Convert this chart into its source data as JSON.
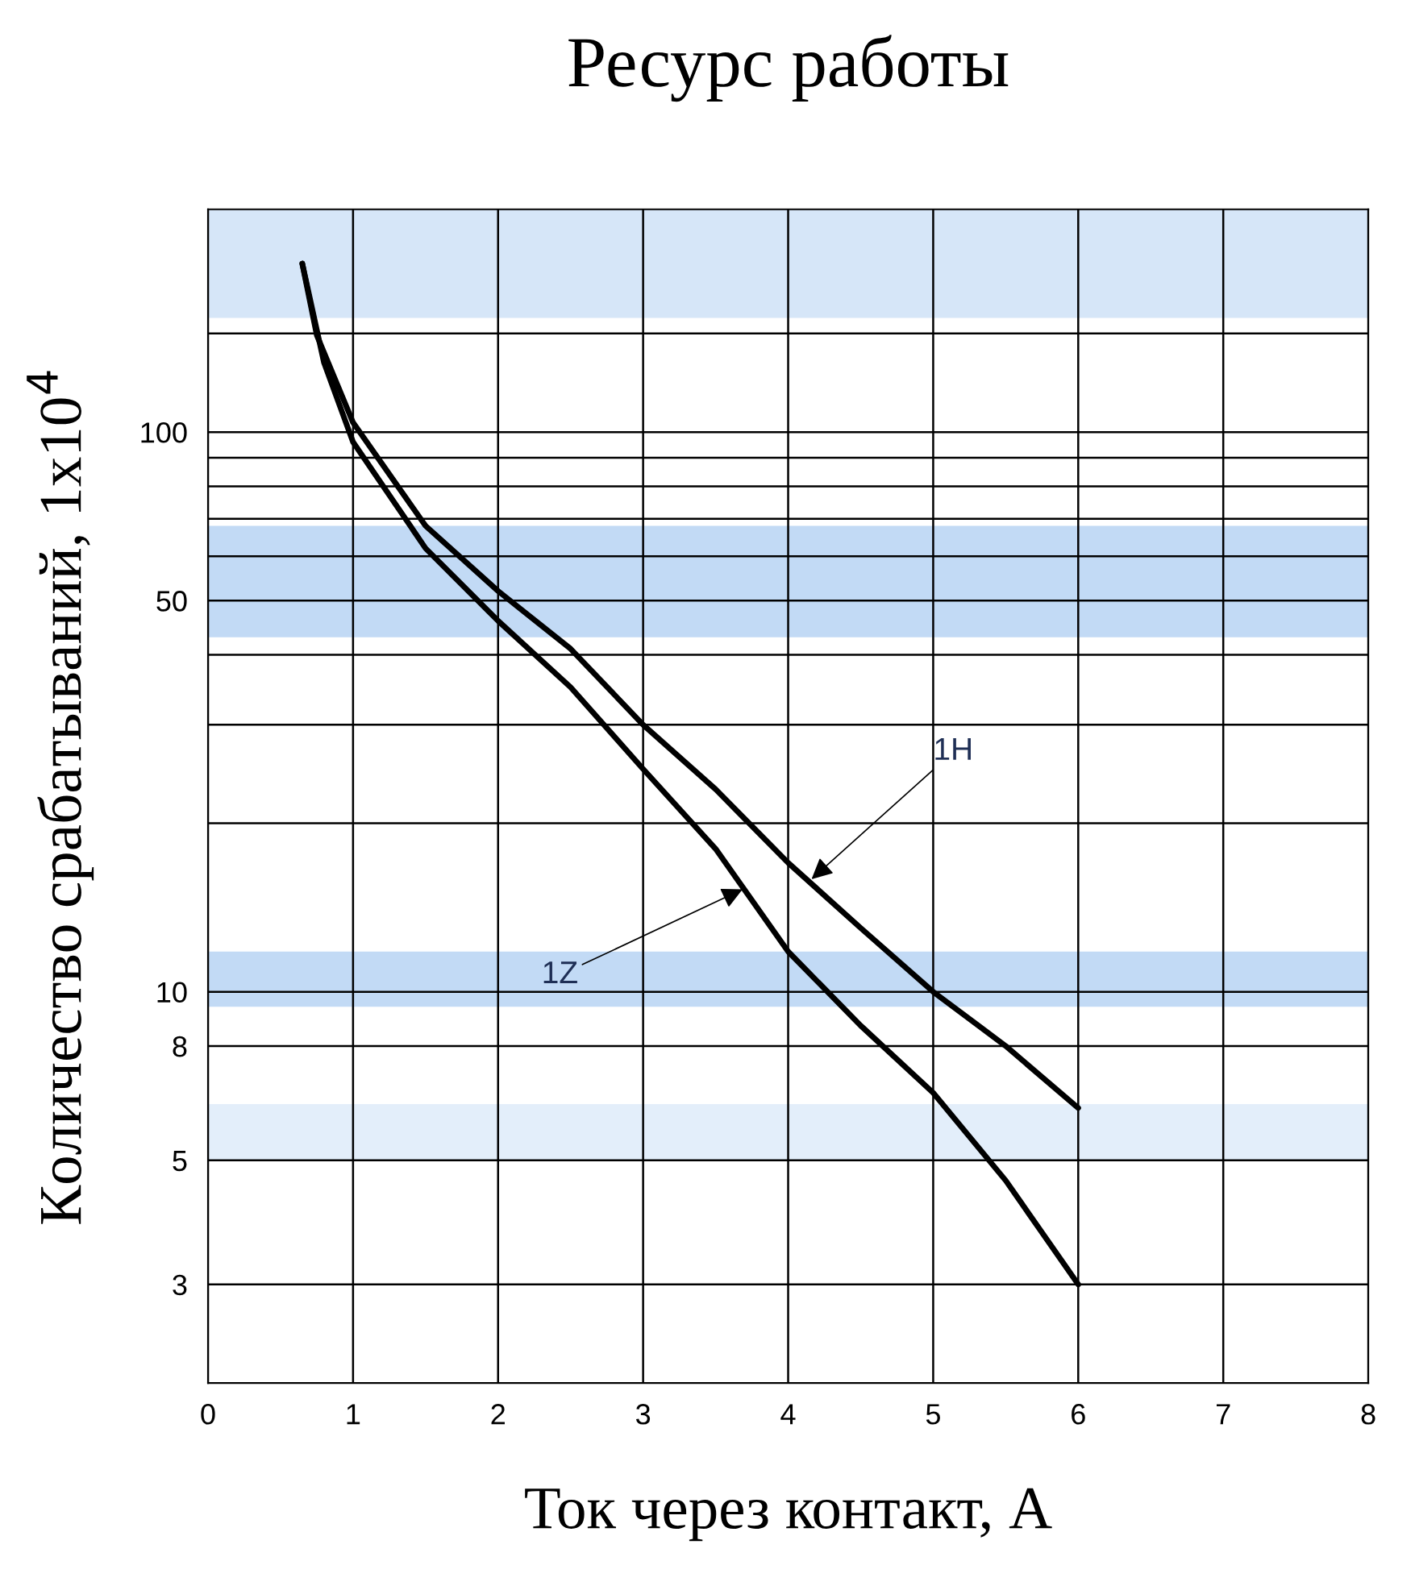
{
  "chart_data": {
    "type": "line",
    "title": "Ресурс работы",
    "xlabel": "Ток через контакт, А",
    "ylabel": "Количество срабатываний, 1x10$^{4}$",
    "log": "y",
    "grid": true,
    "line_style": "solid",
    "marker": "none",
    "xlim": [
      0,
      8
    ],
    "xticks": [
      0,
      1,
      2,
      3,
      4,
      5,
      6,
      7,
      8
    ],
    "ylim": [
      2,
      250
    ],
    "yticks": [
      3,
      5,
      8,
      10,
      {
        "value": 20,
        "label": null
      },
      {
        "value": 30,
        "label": null
      },
      {
        "value": 40,
        "label": null
      },
      50,
      {
        "value": 60,
        "label": null
      },
      {
        "value": 70,
        "label": null
      },
      {
        "value": 80,
        "label": null
      },
      {
        "value": 90,
        "label": null
      },
      100,
      {
        "value": 150,
        "label": null
      }
    ],
    "series": [
      {
        "color": "#000000",
        "x": [
          0.65,
          0.75,
          1.0,
          1.5,
          2,
          2.5,
          3,
          3.5,
          4,
          4.5,
          5,
          5.5,
          6
        ],
        "values": [
          200,
          149,
          104,
          68,
          52,
          41,
          30,
          23,
          17,
          13,
          10,
          8,
          6.2
        ]
      },
      {
        "color": "#000000",
        "x": [
          0.65,
          0.8,
          1.0,
          1.5,
          2,
          2.5,
          3,
          3.5,
          4,
          4.5,
          5,
          5.5,
          6
        ],
        "values": [
          200,
          133,
          96,
          62,
          46,
          35,
          25,
          18,
          11.8,
          8.7,
          6.6,
          4.6,
          3
        ]
      }
    ],
    "bands": [
      {
        "axis": "y",
        "from": 43,
        "to": 68,
        "color": "#c2daf5"
      },
      {
        "axis": "y",
        "from": 9.4,
        "to": 11.8,
        "color": "#c2daf5"
      },
      {
        "axis": "y",
        "from": 160,
        "to": 250,
        "color": "#d6e6f8"
      },
      {
        "axis": "y",
        "from": 5,
        "to": 6.3,
        "color": "#e3eefa"
      }
    ],
    "annotations": [
      {
        "text": "1H",
        "x": 4.15,
        "y": 15.8
      },
      {
        "text": "1Z",
        "x": 3.7,
        "y": 15.3
      }
    ]
  }
}
